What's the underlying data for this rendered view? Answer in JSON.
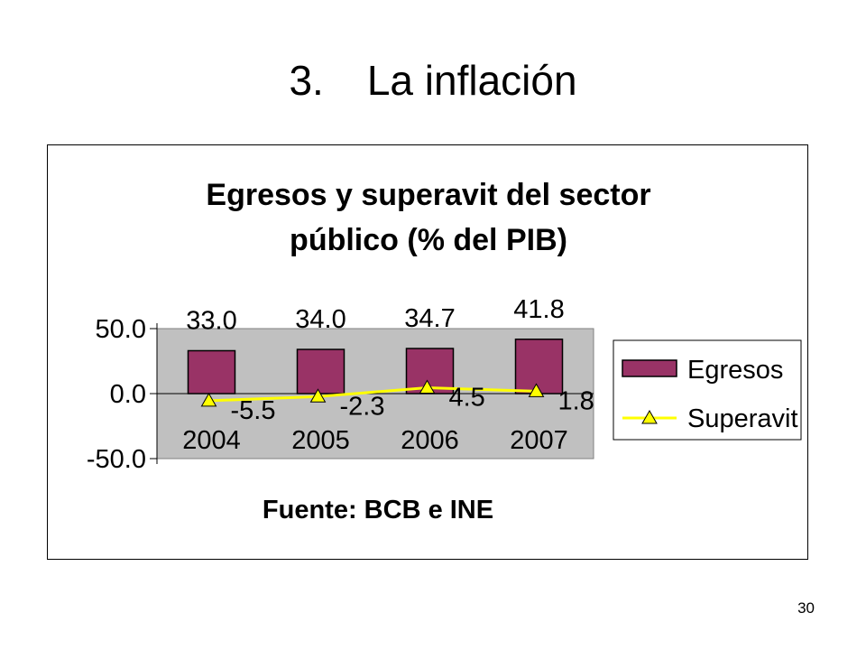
{
  "slide": {
    "number": "3.",
    "title": "La inflación",
    "page_number": "30"
  },
  "chart_data": {
    "type": "bar",
    "title_line1": "Egresos y superavit del sector",
    "title_line2": "público (% del PIB)",
    "source": "Fuente: BCB e INE",
    "categories": [
      "2004",
      "2005",
      "2006",
      "2007"
    ],
    "series": [
      {
        "name": "Egresos",
        "kind": "bar",
        "color": "#993366",
        "values": [
          33.0,
          34.0,
          34.7,
          41.8
        ],
        "labels": [
          "33.0",
          "34.0",
          "34.7",
          "41.8"
        ]
      },
      {
        "name": "Superavit",
        "kind": "line",
        "color": "#FFFF00",
        "values": [
          -5.5,
          -2.3,
          4.5,
          1.8
        ],
        "labels": [
          "-5.5",
          "-2.3",
          "4.5",
          "1.8"
        ]
      }
    ],
    "ylim": [
      -50,
      50
    ],
    "yticks": [
      "50.0",
      "0.0",
      "-50.0"
    ],
    "plot_area_color": "#C0C0C0",
    "legend_position": "right"
  }
}
